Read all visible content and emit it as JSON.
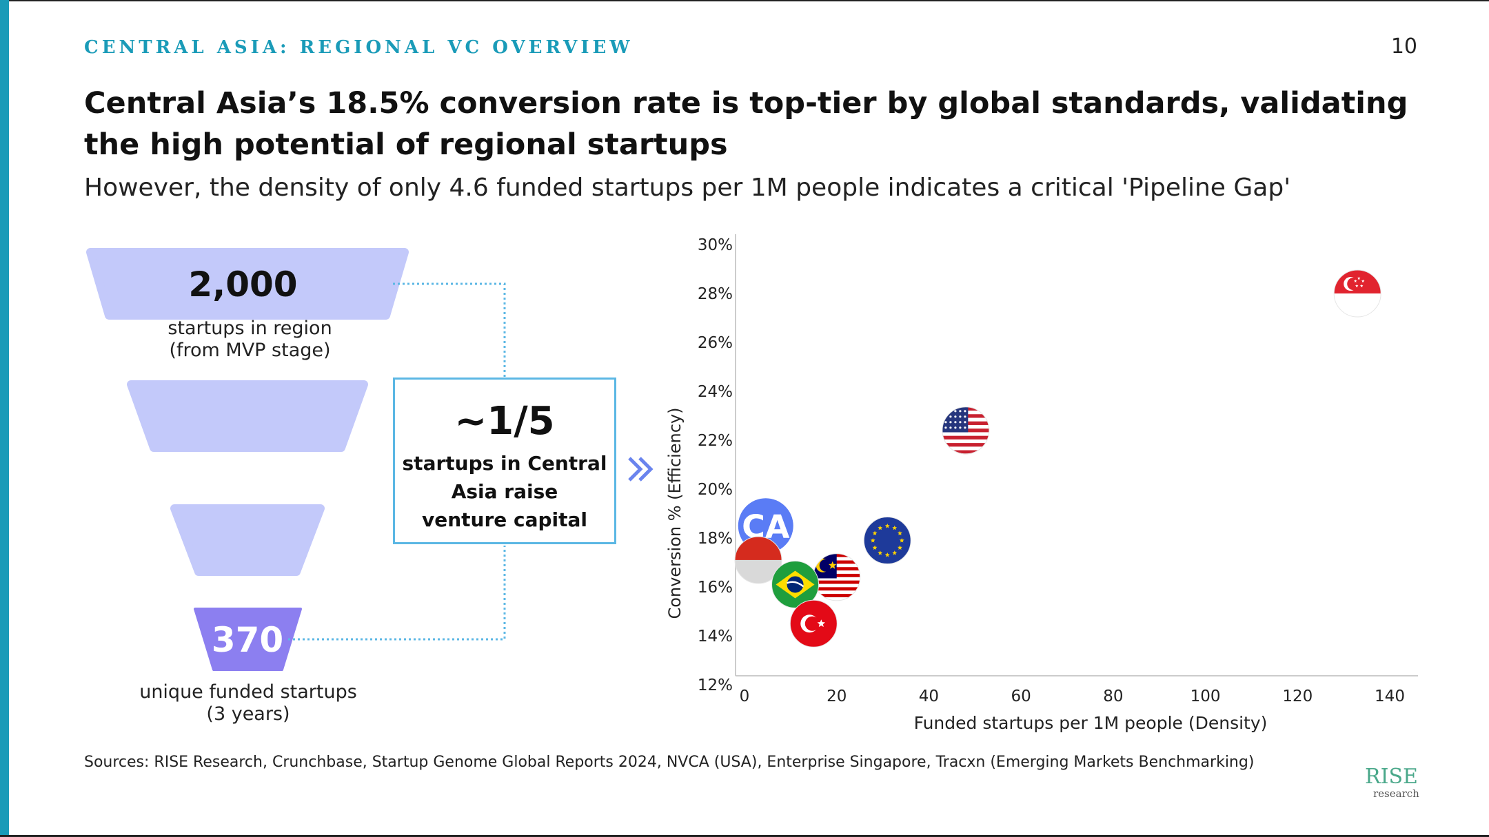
{
  "header": {
    "section_label": "CENTRAL ASIA: REGIONAL VC OVERVIEW",
    "page_number": "10",
    "title": "Central Asia’s 18.5% conversion rate is top-tier by global standards, validating the high potential of regional startups",
    "subtitle": "However, the density of only 4.6 funded startups per 1M people indicates a critical 'Pipeline Gap'"
  },
  "funnel": {
    "top_value": "2,000",
    "top_caption_1": "startups in region",
    "top_caption_2": "(from MVP stage)",
    "bottom_value": "370",
    "bottom_caption_1": "unique funded startups",
    "bottom_caption_2": "(3 years)",
    "colors": {
      "light": "#c3c9fa",
      "dark": "#8c7ff0"
    }
  },
  "callout": {
    "value": "~1/5",
    "line_1": "startups in Central",
    "line_2": "Asia raise",
    "line_3": "venture capital",
    "border_color": "#5bb7e4",
    "arrow_icon": "double-chevron-right"
  },
  "chart_data": {
    "type": "scatter",
    "xlabel": "Funded startups per 1M people (Density)",
    "ylabel": "Conversion % (Efficiency)",
    "xlim": [
      0,
      140
    ],
    "ylim": [
      12,
      30
    ],
    "x_ticks": [
      "0",
      "20",
      "40",
      "60",
      "80",
      "100",
      "120",
      "140"
    ],
    "y_ticks": [
      "12%",
      "14%",
      "16%",
      "18%",
      "20%",
      "22%",
      "24%",
      "26%",
      "28%",
      "30%"
    ],
    "grid": false,
    "points": [
      {
        "marker": "flag-singapore",
        "x": 133,
        "y": 28.0
      },
      {
        "marker": "flag-usa",
        "x": 48,
        "y": 22.4
      },
      {
        "marker": "flag-eu",
        "x": 31,
        "y": 17.9
      },
      {
        "marker": "label-ca",
        "label": "CA",
        "x": 4.6,
        "y": 18.5,
        "color": "#5a7cf5"
      },
      {
        "marker": "flag-indonesia",
        "x": 3,
        "y": 17.1
      },
      {
        "marker": "flag-malaysia",
        "x": 20,
        "y": 16.4
      },
      {
        "marker": "flag-brazil",
        "x": 11,
        "y": 16.1
      },
      {
        "marker": "flag-turkey",
        "x": 15,
        "y": 14.5
      }
    ]
  },
  "footer": {
    "sources": "Sources: RISE Research, Crunchbase, Startup Genome Global Reports 2024, NVCA (USA), Enterprise Singapore, Tracxn (Emerging Markets Benchmarking)",
    "logo_main": "RISE",
    "logo_sub": "research"
  }
}
